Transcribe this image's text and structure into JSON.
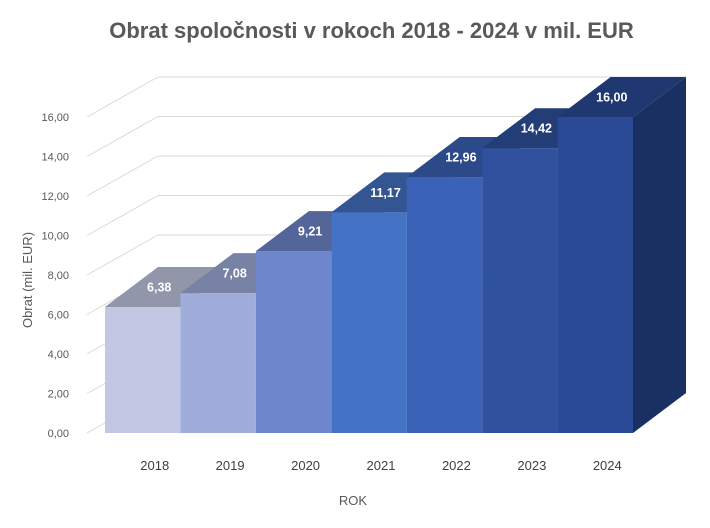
{
  "chart_data": {
    "type": "bar",
    "title": "Obrat spoločnosti v rokoch 2018 - 2024 v mil. EUR",
    "xlabel": "ROK",
    "ylabel": "Obrat (mil. EUR)",
    "categories": [
      "2018",
      "2019",
      "2020",
      "2021",
      "2022",
      "2023",
      "2024"
    ],
    "values": [
      6.38,
      7.08,
      9.21,
      11.17,
      12.96,
      14.42,
      16.0
    ],
    "data_labels": [
      "6,38",
      "7,08",
      "9,21",
      "11,17",
      "12,96",
      "14,42",
      "16,00"
    ],
    "ylim": [
      0,
      16
    ],
    "yticks": [
      "0,00",
      "2,00",
      "4,00",
      "6,00",
      "8,00",
      "10,00",
      "12,00",
      "14,00",
      "16,00"
    ],
    "grid": true,
    "legend": "none",
    "style": "3d-column",
    "colors": [
      "#c2c8e4",
      "#a0addb",
      "#6e86cc",
      "#4472c4",
      "#3a62b8",
      "#2f519e",
      "#2a4a96"
    ]
  }
}
